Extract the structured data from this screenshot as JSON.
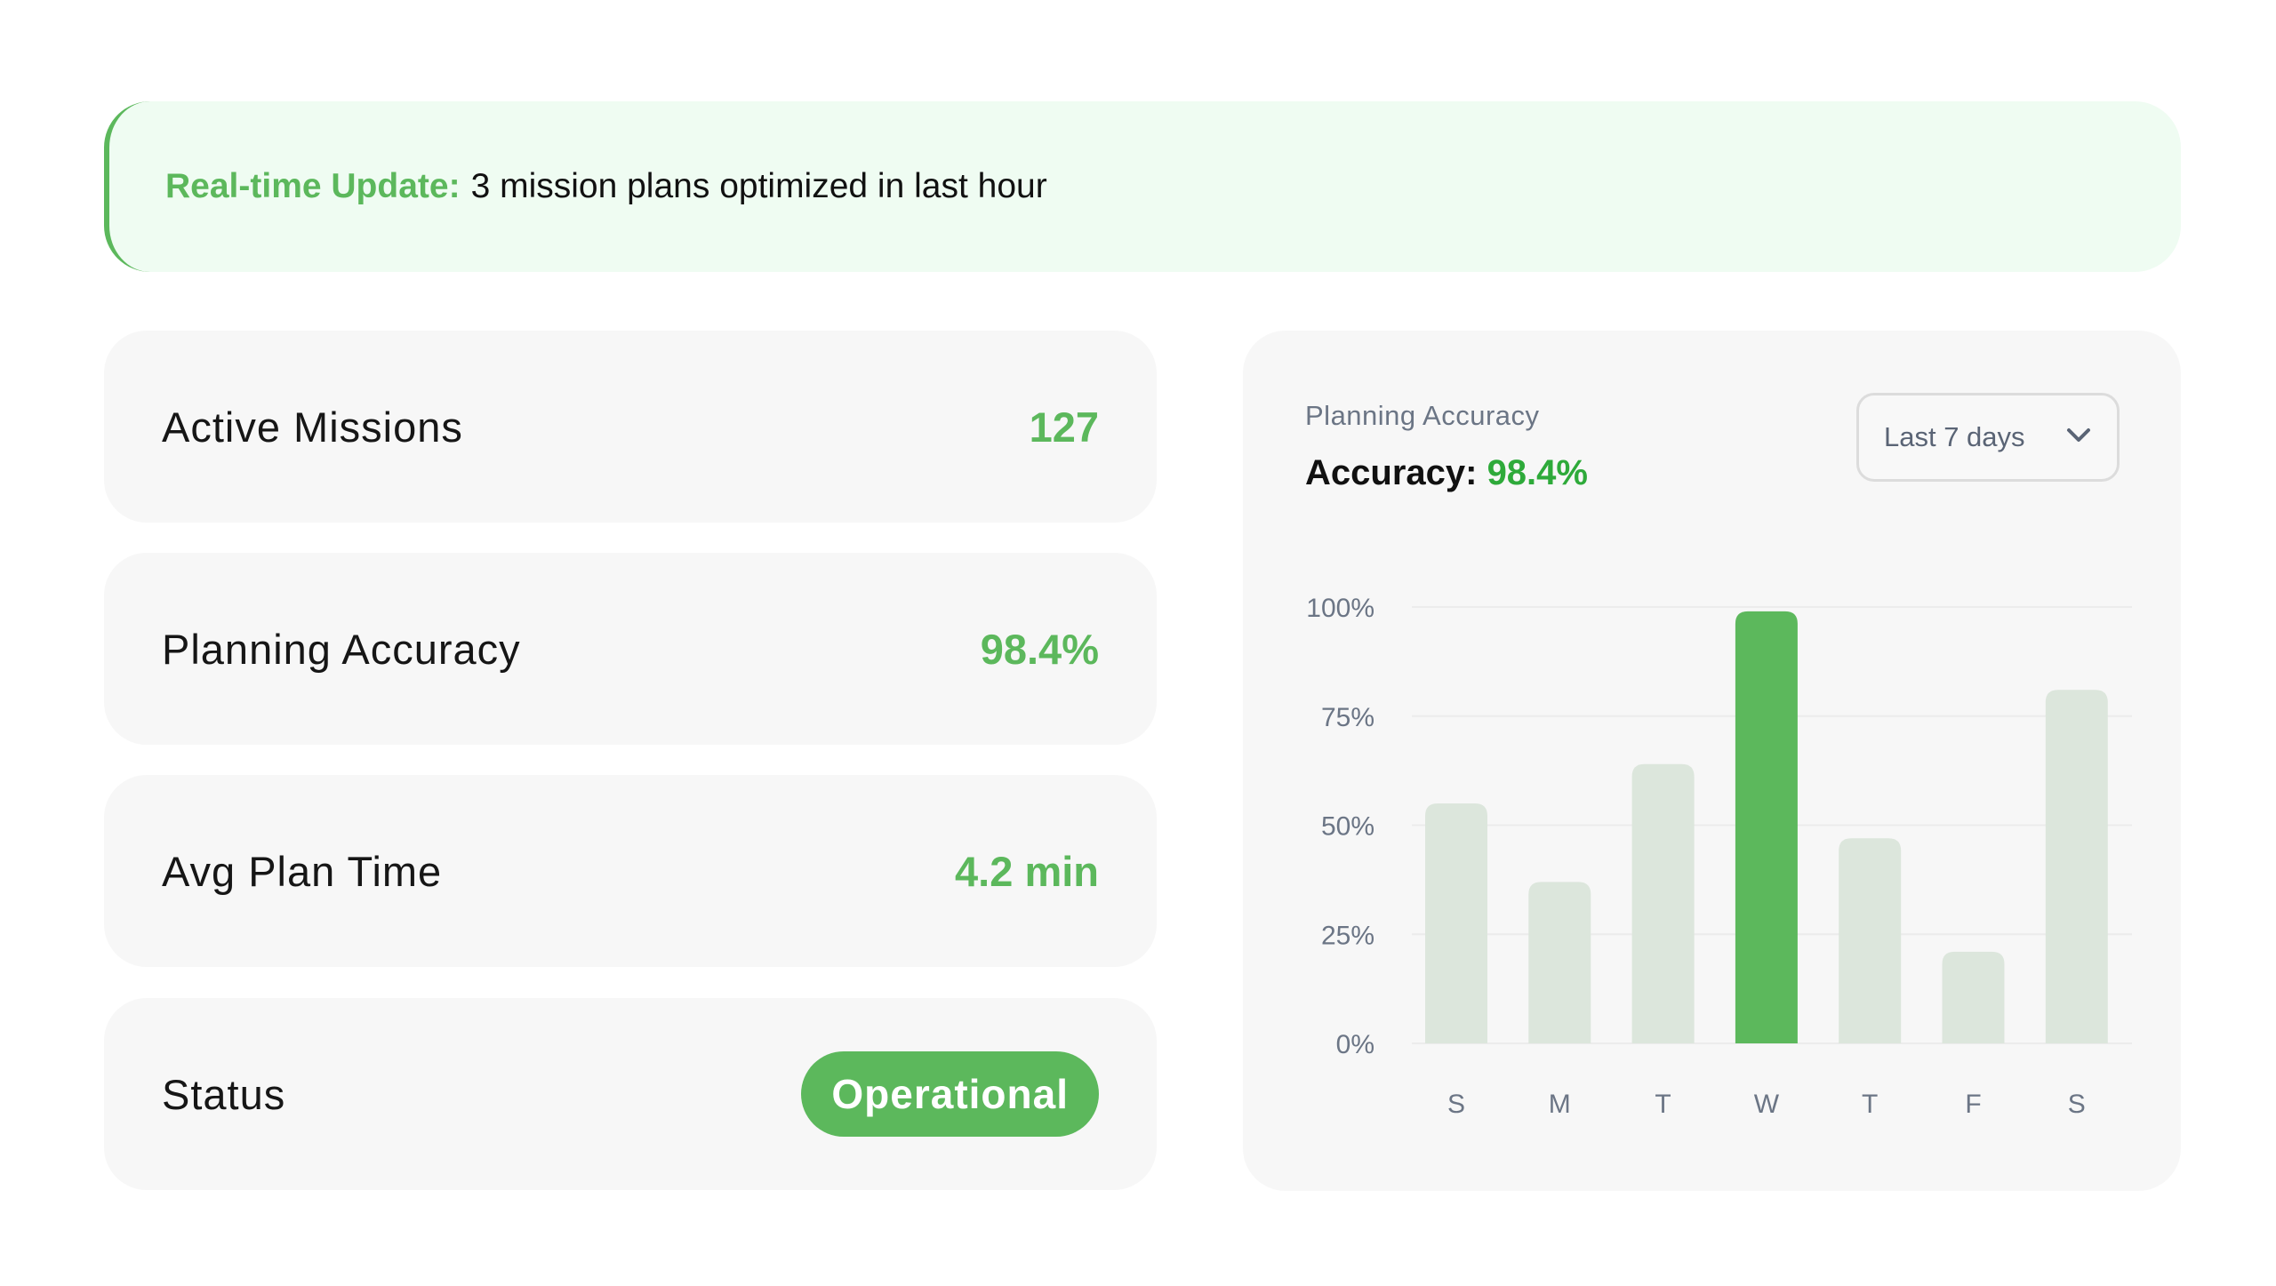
{
  "banner": {
    "label": "Real-time Update:",
    "message": "3 mission plans optimized in last hour"
  },
  "stats": [
    {
      "label": "Active Missions",
      "value": "127"
    },
    {
      "label": "Planning Accuracy",
      "value": "98.4%"
    },
    {
      "label": "Avg Plan Time",
      "value": "4.2 min"
    },
    {
      "label": "Status",
      "value": "Operational"
    }
  ],
  "chart_panel": {
    "subtitle": "Planning Accuracy",
    "headline_label": "Accuracy:",
    "headline_value": "98.4%",
    "range_select": {
      "value": "Last 7 days"
    }
  },
  "colors": {
    "accent": "#5cb85c",
    "bar_default": "#dce6dc",
    "bar_highlight": "#5cb85c",
    "banner_bg": "#effcf2",
    "card_bg": "#f7f7f7"
  },
  "chart_data": {
    "type": "bar",
    "title": "",
    "xlabel": "",
    "ylabel": "",
    "categories": [
      "S",
      "M",
      "T",
      "W",
      "T",
      "F",
      "S"
    ],
    "values": [
      55,
      37,
      64,
      99,
      47,
      21,
      81
    ],
    "highlight_index": 3,
    "ylim": [
      0,
      100
    ],
    "yticks": [
      "0%",
      "25%",
      "50%",
      "75%",
      "100%"
    ],
    "grid": true,
    "legend": "none"
  }
}
